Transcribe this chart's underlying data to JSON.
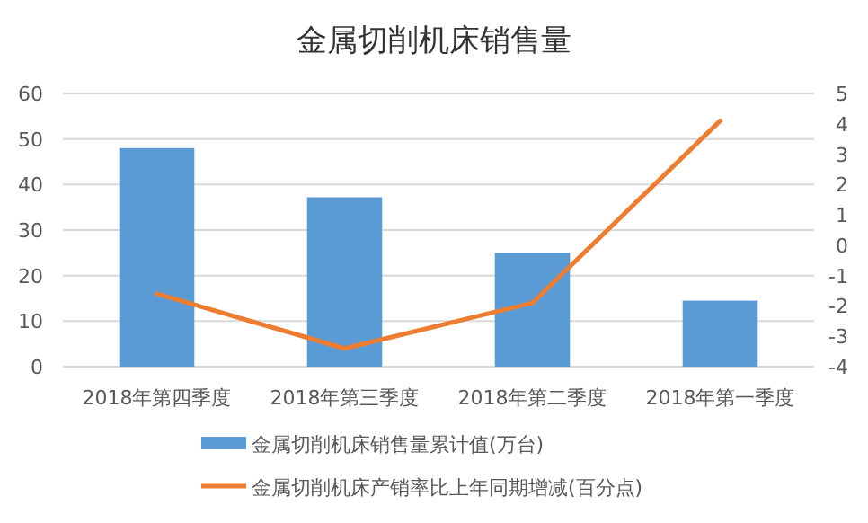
{
  "chart_data": {
    "type": "bar",
    "title": "金属切削机床销售量",
    "categories": [
      "2018年第四季度",
      "2018年第三季度",
      "2018年第二季度",
      "2018年第一季度"
    ],
    "series": [
      {
        "name": "金属切削机床销售量累计值(万台)",
        "color": "#5b9bd5",
        "values": [
          48.0,
          37.2,
          25.0,
          14.5
        ]
      },
      {
        "name": "金属切削机床产销率比上年同期增减(百分点)",
        "type": "line",
        "axis": "y2",
        "color": "#ed7d31",
        "values": [
          -1.6,
          -3.4,
          -1.9,
          4.1
        ]
      }
    ],
    "ylim": [
      0,
      60
    ],
    "yticks": [
      0,
      10,
      20,
      30,
      40,
      50,
      60
    ],
    "y2lim": [
      -4,
      5
    ],
    "y2ticks": [
      -4,
      -3,
      -2,
      -1,
      0,
      1,
      2,
      3,
      4,
      5
    ],
    "grid": "y",
    "legend": "bottom"
  }
}
